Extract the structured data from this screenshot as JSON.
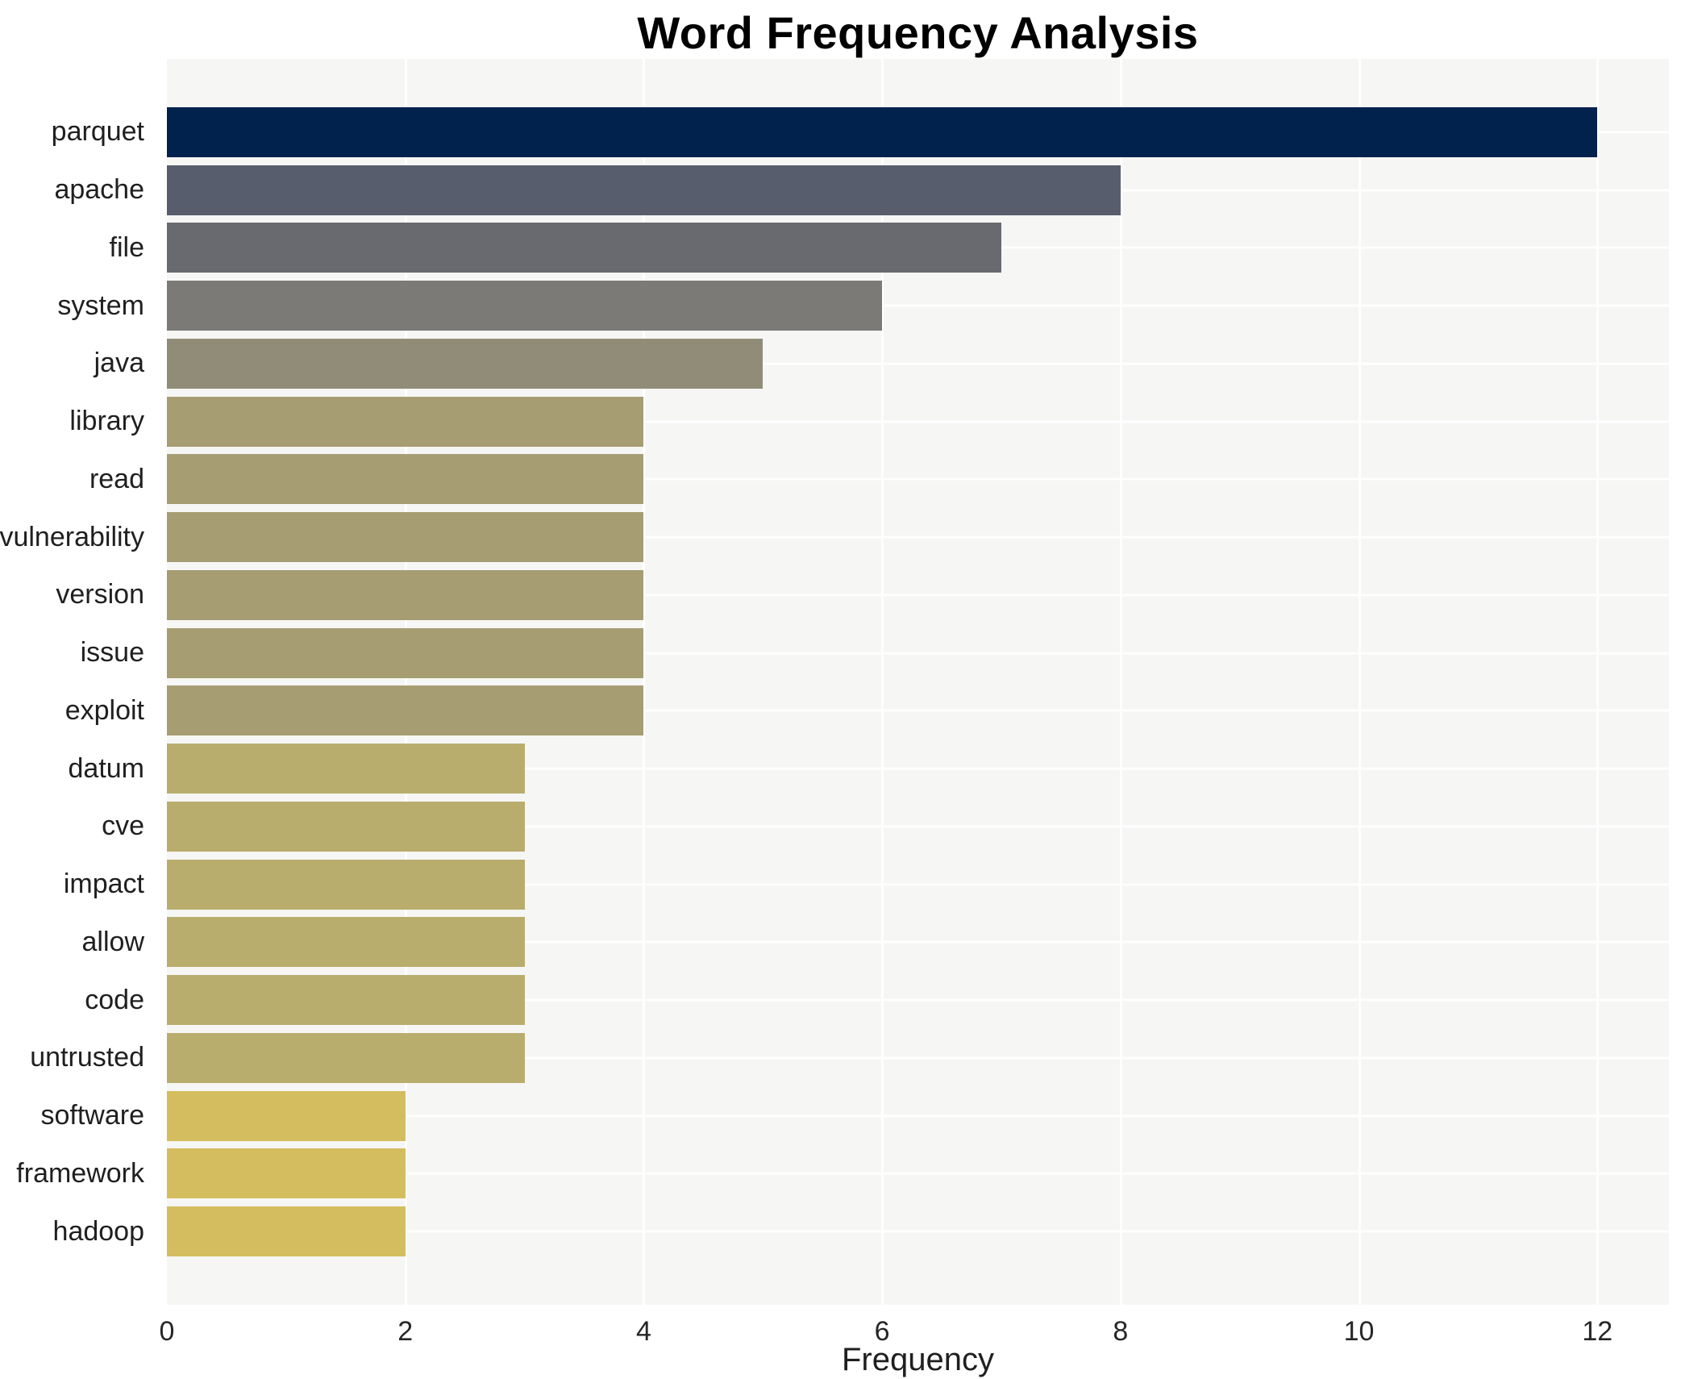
{
  "chart_data": {
    "type": "bar",
    "orientation": "horizontal",
    "title": "Word Frequency Analysis",
    "xlabel": "Frequency",
    "ylabel": "",
    "categories": [
      "parquet",
      "apache",
      "file",
      "system",
      "java",
      "library",
      "read",
      "vulnerability",
      "version",
      "issue",
      "exploit",
      "datum",
      "cve",
      "impact",
      "allow",
      "code",
      "untrusted",
      "software",
      "framework",
      "hadoop"
    ],
    "values": [
      12,
      8,
      7,
      6,
      5,
      4,
      4,
      4,
      4,
      4,
      4,
      3,
      3,
      3,
      3,
      3,
      3,
      2,
      2,
      2
    ],
    "bar_colors": [
      "#02224e",
      "#575d6d",
      "#696a70",
      "#7b7a77",
      "#918c77",
      "#a69d72",
      "#a69d72",
      "#a69d72",
      "#a69d72",
      "#a69d72",
      "#a69d72",
      "#b9ad6e",
      "#b9ad6e",
      "#b9ad6e",
      "#b9ad6e",
      "#b9ad6e",
      "#b9ad6e",
      "#d4bd5e",
      "#d4bd5e",
      "#d4bd5e"
    ],
    "xticks": [
      0,
      2,
      4,
      6,
      8,
      10,
      12
    ],
    "xlim": [
      0,
      12.6
    ],
    "grid": true,
    "legend_position": "none",
    "colors": {
      "plot_background": "#f6f6f5",
      "grid": "#ffffff",
      "tick_text": "#262626",
      "label_text": "#1f1f1f",
      "title_text": "#000000"
    }
  }
}
